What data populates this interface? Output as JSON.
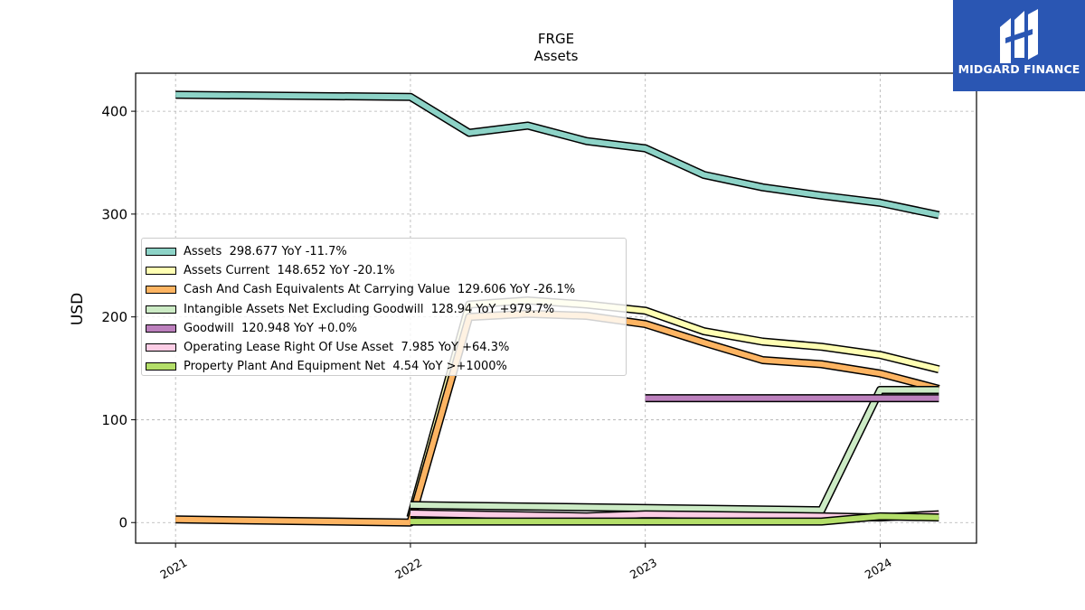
{
  "logo": {
    "text": "MIDGARD FINANCE"
  },
  "chart_data": {
    "type": "line",
    "title": "FRGE",
    "subtitle": "Assets",
    "ylabel": "USD",
    "xlabel": "",
    "ylim": [
      -20,
      437
    ],
    "yticks": [
      0,
      100,
      200,
      300,
      400
    ],
    "xlim": [
      2020.83,
      2024.41
    ],
    "xticks": [
      {
        "value": 2021,
        "label": "2021"
      },
      {
        "value": 2022,
        "label": "2022"
      },
      {
        "value": 2023,
        "label": "2023"
      },
      {
        "value": 2024,
        "label": "2024"
      }
    ],
    "grid": true,
    "legend_position": "center-left",
    "series": [
      {
        "name": "Assets",
        "legend": "Assets  298.677 YoY -11.7%",
        "color": "#8dd3c7",
        "x": [
          2021.0,
          2022.0,
          2022.25,
          2022.5,
          2022.75,
          2023.0,
          2023.25,
          2023.5,
          2023.75,
          2024.0,
          2024.25
        ],
        "y": [
          416,
          414,
          379,
          386,
          371,
          364,
          338,
          326,
          318,
          311,
          299
        ]
      },
      {
        "name": "Assets Current",
        "legend": "Assets Current  148.652 YoY -20.1%",
        "color": "#ffffb3",
        "x": [
          2022.0,
          2022.25,
          2022.5,
          2022.75,
          2023.0,
          2023.25,
          2023.5,
          2023.75,
          2024.0,
          2024.25
        ],
        "y": [
          5,
          212,
          216,
          212,
          206,
          186,
          176,
          171,
          163,
          149
        ]
      },
      {
        "name": "Cash And Cash Equivalents At Carrying Value",
        "legend": "Cash And Cash Equivalents At Carrying Value  129.606 YoY -26.1%",
        "color": "#fdb462",
        "x": [
          2021.0,
          2022.0,
          2022.25,
          2022.5,
          2022.75,
          2023.0,
          2023.25,
          2023.5,
          2023.75,
          2024.0,
          2024.25
        ],
        "y": [
          3,
          0,
          200,
          203,
          201,
          193,
          175,
          158,
          154,
          145,
          130
        ]
      },
      {
        "name": "Intangible Assets Net Excluding Goodwill",
        "legend": "Intangible Assets Net Excluding Goodwill  128.94 YoY +979.7%",
        "color": "#ccebc5",
        "x": [
          2022.0,
          2023.75,
          2024.0,
          2024.25
        ],
        "y": [
          17,
          12,
          129,
          129
        ]
      },
      {
        "name": "Goodwill",
        "legend": "Goodwill  120.948 YoY +0.0%",
        "color": "#bc80bd",
        "x": [
          2023.0,
          2024.25
        ],
        "y": [
          121,
          121
        ]
      },
      {
        "name": "Operating Lease Right Of Use Asset",
        "legend": "Operating Lease Right Of Use Asset  7.985 YoY +64.3%",
        "color": "#fccde5",
        "x": [
          2022.0,
          2022.75,
          2023.0,
          2023.75,
          2024.0,
          2024.25
        ],
        "y": [
          9,
          6,
          8,
          6,
          5,
          8
        ]
      },
      {
        "name": "Property Plant And Equipment Net",
        "legend": "Property Plant And Equipment Net  4.54 YoY >+1000%",
        "color": "#b3de69",
        "x": [
          2022.0,
          2023.75,
          2024.0,
          2024.25
        ],
        "y": [
          1,
          1,
          6,
          5
        ]
      }
    ]
  }
}
